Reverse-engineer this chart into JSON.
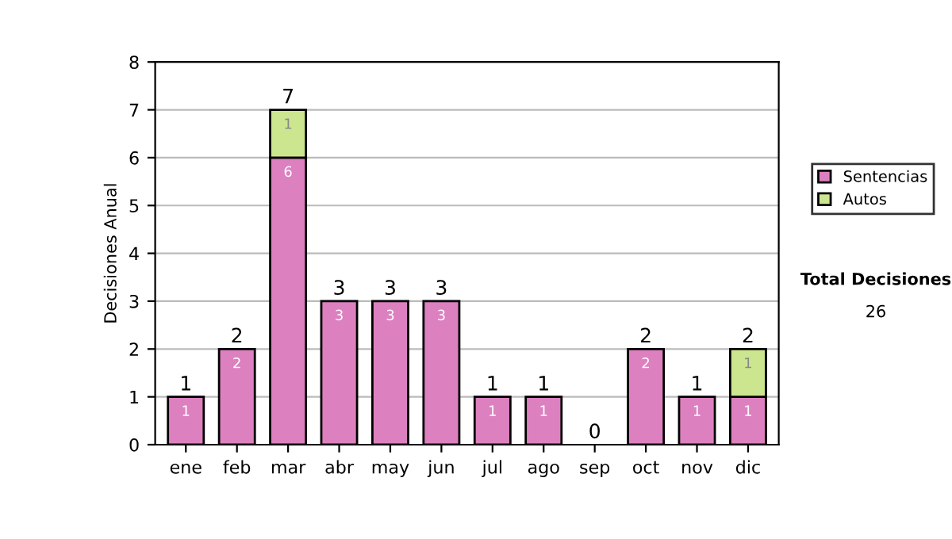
{
  "chart_data": {
    "type": "bar",
    "stacked": true,
    "ylabel": "Decisiones Anual",
    "categories": [
      "ene",
      "feb",
      "mar",
      "abr",
      "may",
      "jun",
      "jul",
      "ago",
      "sep",
      "oct",
      "nov",
      "dic"
    ],
    "series": [
      {
        "name": "Sentencias",
        "color": "#dd80c0",
        "values": [
          1,
          2,
          6,
          3,
          3,
          3,
          1,
          1,
          0,
          2,
          1,
          1
        ],
        "value_labels": [
          "1",
          "2",
          "6",
          "3",
          "3",
          "3",
          "1",
          "1",
          null,
          "2",
          "1",
          "1"
        ]
      },
      {
        "name": "Autos",
        "color": "#cce690",
        "values": [
          0,
          0,
          1,
          0,
          0,
          0,
          0,
          0,
          0,
          0,
          0,
          1
        ],
        "value_labels": [
          null,
          null,
          "1",
          null,
          null,
          null,
          null,
          null,
          null,
          null,
          null,
          "1"
        ]
      }
    ],
    "totals": [
      "1",
      "2",
      "7",
      "3",
      "3",
      "3",
      "1",
      "1",
      "0",
      "2",
      "1",
      "2"
    ],
    "ylim": [
      0,
      8
    ],
    "yticks": [
      0,
      1,
      2,
      3,
      4,
      5,
      6,
      7,
      8
    ],
    "grid": "y",
    "legend": "right",
    "annotations": [
      "Total Decisiones",
      "26"
    ]
  }
}
